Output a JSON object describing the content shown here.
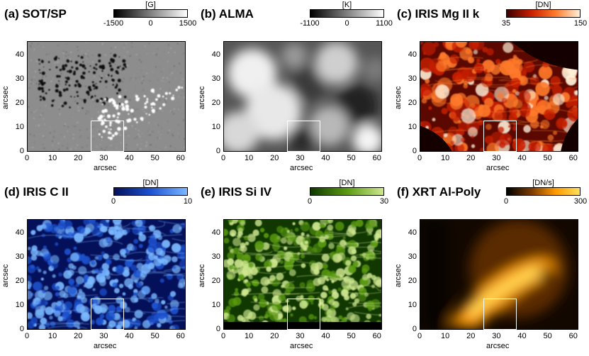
{
  "panels": [
    {
      "title": "(a) SOT/SP",
      "unit": "[G]",
      "ticks": [
        "-1500",
        "0",
        "1500"
      ],
      "gradient": [
        "#000000",
        "#ffffff"
      ],
      "image_style": "magnetogram"
    },
    {
      "title": "(b) ALMA",
      "unit": "[K]",
      "ticks": [
        "-1100",
        "0",
        "1100"
      ],
      "gradient": [
        "#000000",
        "#ffffff"
      ],
      "image_style": "alma"
    },
    {
      "title": "(c) IRIS Mg II k",
      "unit": "[DN]",
      "ticks": [
        "35",
        "150"
      ],
      "gradient": [
        "#3a0000",
        "#c81e00",
        "#ff7a2a",
        "#fff0d8"
      ],
      "image_style": "mgii"
    },
    {
      "title": "(d) IRIS C II",
      "unit": "[DN]",
      "ticks": [
        "0",
        "10"
      ],
      "gradient": [
        "#04105a",
        "#1c52d0",
        "#7ab8ff"
      ],
      "image_style": "cii"
    },
    {
      "title": "(e) IRIS Si IV",
      "unit": "[DN]",
      "ticks": [
        "0",
        "30"
      ],
      "gradient": [
        "#103800",
        "#5a9a10",
        "#cfe890"
      ],
      "image_style": "siiv"
    },
    {
      "title": "(f) XRT Al-Poly",
      "unit": "[DN/s]",
      "ticks": [
        "0",
        "300"
      ],
      "gradient": [
        "#000000",
        "#7a3a00",
        "#ff9a00",
        "#ffe05a"
      ],
      "image_style": "xrt"
    }
  ],
  "axes": {
    "xlabel": "arcsec",
    "ylabel": "arcsec",
    "xticks": [
      "0",
      "10",
      "20",
      "30",
      "40",
      "50",
      "60"
    ],
    "yticks": [
      "0",
      "10",
      "20",
      "30",
      "40"
    ],
    "xrange": [
      0,
      62
    ],
    "yrange": [
      0,
      46
    ]
  },
  "roi_box": {
    "x": [
      25,
      38
    ],
    "y": [
      0,
      13
    ]
  }
}
